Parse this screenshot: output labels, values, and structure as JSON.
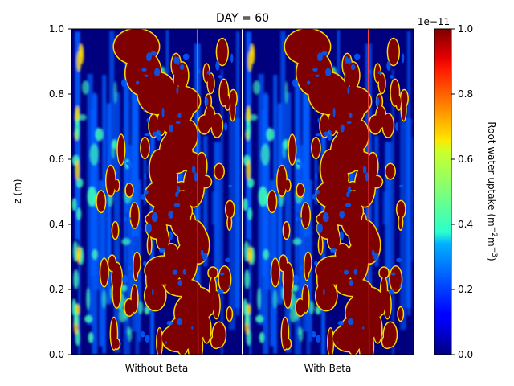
{
  "chart_data": {
    "type": "heatmap",
    "title": "DAY = 60",
    "ylabel": "z (m)",
    "ylim": [
      0,
      1
    ],
    "yticks": [
      "0.0",
      "0.2",
      "0.4",
      "0.6",
      "0.8",
      "1.0"
    ],
    "panels": [
      {
        "label": "Without Beta"
      },
      {
        "label": "With Beta"
      }
    ],
    "colorbar": {
      "label_main": "Root water uptake (m",
      "label_sup1": "−2",
      "label_mid": "m",
      "label_sup2": "−3",
      "label_end": ")",
      "scale_note": "1e−11",
      "range": [
        0,
        1
      ],
      "ticks": [
        "0.0",
        "0.2",
        "0.4",
        "0.6",
        "0.8",
        "1.0"
      ],
      "colormap": "jet"
    },
    "colors": {
      "background": "#00007f",
      "root": "#7f0000",
      "edge_yellow": "#ffd800",
      "edge_cyan": "#3fffb8",
      "mid_blue": "#005cff"
    }
  }
}
